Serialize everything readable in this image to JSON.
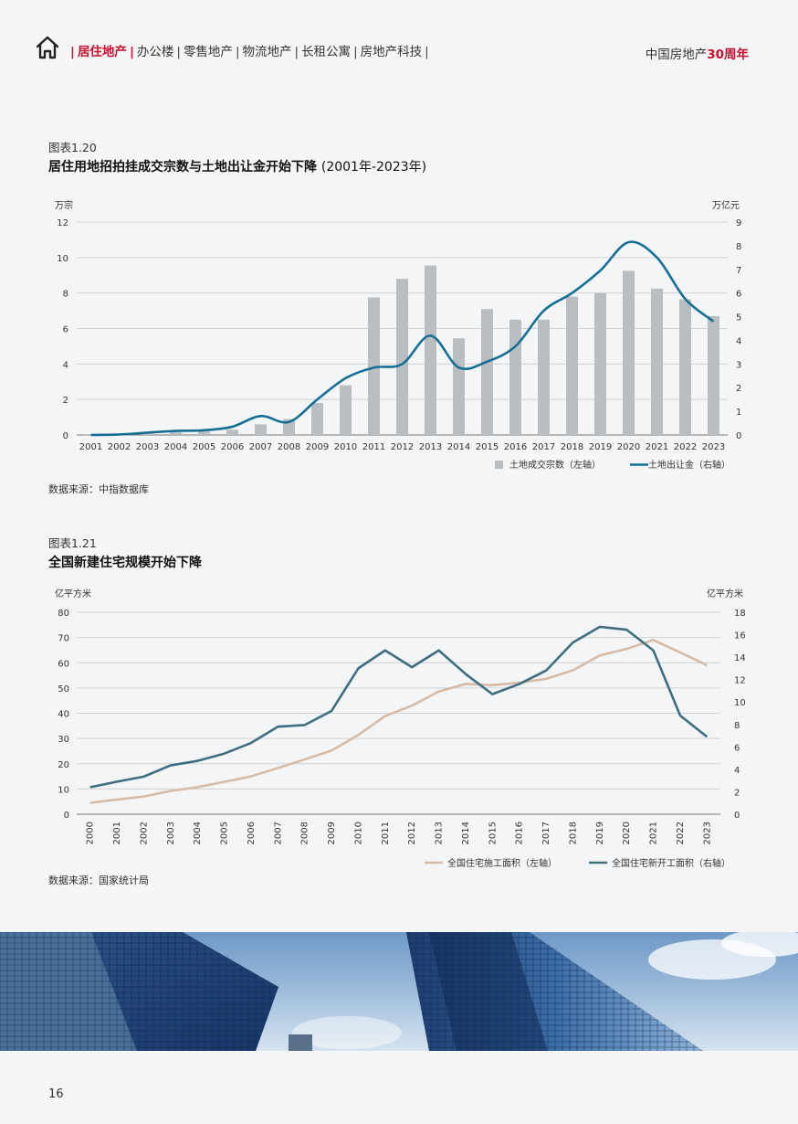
{
  "header": {
    "nav_active": "居住地产",
    "nav_items": [
      "办公楼",
      "零售地产",
      "物流地产",
      "长租公寓",
      "房地产科技"
    ],
    "brand_text": "中国房地产",
    "brand_accent": "30周年",
    "accent_color": "#c8102e"
  },
  "figure1": {
    "label": "图表1.20",
    "title": "居住用地招拍挂成交宗数与土地出让金开始下降",
    "subtitle": "(2001年-2023年)",
    "source": "数据来源：中指数据库"
  },
  "figure2": {
    "label": "图表1.21",
    "title": "全国新建住宅规模开始下降",
    "source": "数据来源：国家统计局"
  },
  "page_number": "16",
  "photo_description_icon": "skyscraper-photo",
  "chart_data": [
    {
      "type": "bar+line",
      "x": [
        "2001",
        "2002",
        "2003",
        "2004",
        "2005",
        "2006",
        "2007",
        "2008",
        "2009",
        "2010",
        "2011",
        "2012",
        "2013",
        "2014",
        "2015",
        "2016",
        "2017",
        "2018",
        "2019",
        "2020",
        "2021",
        "2022",
        "2023"
      ],
      "left_unit": "万宗",
      "right_unit": "万亿元",
      "left_ticks": [
        "0",
        "2",
        "4",
        "6",
        "8",
        "10",
        "12"
      ],
      "right_ticks": [
        "0",
        "1",
        "2",
        "3",
        "4",
        "5",
        "6",
        "7",
        "8",
        "9"
      ],
      "left_ylim": [
        0,
        12
      ],
      "right_ylim": [
        0,
        9
      ],
      "series": [
        {
          "name": "土地成交宗数（左轴）",
          "axis": "left",
          "style": "bar",
          "color": "#b9bec2",
          "values": [
            0.02,
            0.05,
            0.1,
            0.15,
            0.2,
            0.3,
            0.6,
            0.9,
            1.8,
            2.8,
            7.75,
            8.8,
            9.55,
            5.45,
            7.1,
            6.5,
            6.5,
            7.8,
            8.0,
            9.25,
            8.25,
            7.65,
            6.7
          ]
        },
        {
          "name": "土地出让金（右轴）",
          "axis": "right",
          "style": "line",
          "color": "#156f95",
          "values": [
            0.0,
            0.02,
            0.1,
            0.17,
            0.2,
            0.35,
            0.8,
            0.55,
            1.5,
            2.4,
            2.85,
            3.0,
            4.2,
            2.85,
            3.1,
            3.75,
            5.25,
            6.0,
            6.95,
            8.15,
            7.5,
            5.75,
            4.8
          ]
        }
      ],
      "grid": true,
      "legend": "bottom-right"
    },
    {
      "type": "line",
      "x": [
        "2000",
        "2001",
        "2002",
        "2003",
        "2004",
        "2005",
        "2006",
        "2007",
        "2008",
        "2009",
        "2010",
        "2011",
        "2012",
        "2013",
        "2014",
        "2015",
        "2016",
        "2017",
        "2018",
        "2019",
        "2020",
        "2021",
        "2022",
        "2023"
      ],
      "left_unit": "亿平方米",
      "right_unit": "亿平方米",
      "left_ticks": [
        "0",
        "10",
        "20",
        "30",
        "40",
        "50",
        "60",
        "70",
        "80"
      ],
      "right_ticks": [
        "0",
        "2",
        "4",
        "6",
        "8",
        "10",
        "12",
        "14",
        "16",
        "18"
      ],
      "left_ylim": [
        0,
        80
      ],
      "right_ylim": [
        0,
        18
      ],
      "series": [
        {
          "name": "全国住宅施工面积（左轴）",
          "axis": "left",
          "color": "#d6bba6",
          "values": [
            4.5,
            5.8,
            7.0,
            9.2,
            10.7,
            12.8,
            15.0,
            18.3,
            21.7,
            25.2,
            31.4,
            38.9,
            43.0,
            48.6,
            51.6,
            51.1,
            52.1,
            53.6,
            57.0,
            62.9,
            65.5,
            69.0,
            64.1,
            59.0
          ]
        },
        {
          "name": "全国住宅新开工面积（右轴）",
          "axis": "right",
          "color": "#3f6e80",
          "values": [
            2.4,
            2.9,
            3.35,
            4.35,
            4.75,
            5.4,
            6.35,
            7.8,
            7.95,
            9.2,
            13.0,
            14.6,
            13.1,
            14.6,
            12.5,
            10.7,
            11.6,
            12.8,
            15.3,
            16.7,
            16.45,
            14.6,
            8.8,
            6.9
          ]
        }
      ],
      "grid": true,
      "legend": "bottom-right"
    }
  ]
}
